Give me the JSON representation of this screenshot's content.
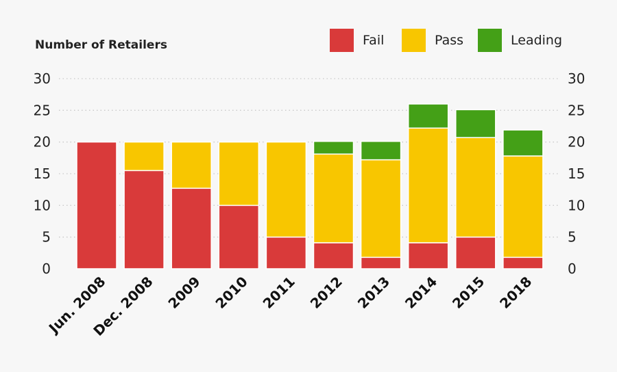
{
  "chart_data": {
    "type": "bar",
    "stacked": true,
    "ylabel": "Number of Retailers",
    "ylim": [
      0,
      30
    ],
    "yticks": [
      0,
      5,
      10,
      15,
      20,
      25,
      30
    ],
    "grid": true,
    "legend_position": "top-right",
    "categories": [
      "Jun. 2008",
      "Dec. 2008",
      "2009",
      "2010",
      "2011",
      "2012",
      "2013",
      "2014",
      "2015",
      "2018"
    ],
    "series": [
      {
        "name": "Fail",
        "color": "#d93a3a",
        "values": [
          20,
          15.5,
          12.7,
          10,
          5,
          4.1,
          1.8,
          4.1,
          5,
          1.8
        ]
      },
      {
        "name": "Pass",
        "color": "#f8c600",
        "values": [
          0,
          4.5,
          7.3,
          10,
          15,
          14,
          15.4,
          18.1,
          15.7,
          16
        ]
      },
      {
        "name": "Leading",
        "color": "#44a017",
        "values": [
          0,
          0,
          0,
          0,
          0,
          2,
          2.9,
          3.8,
          4.4,
          4.1
        ]
      }
    ]
  }
}
